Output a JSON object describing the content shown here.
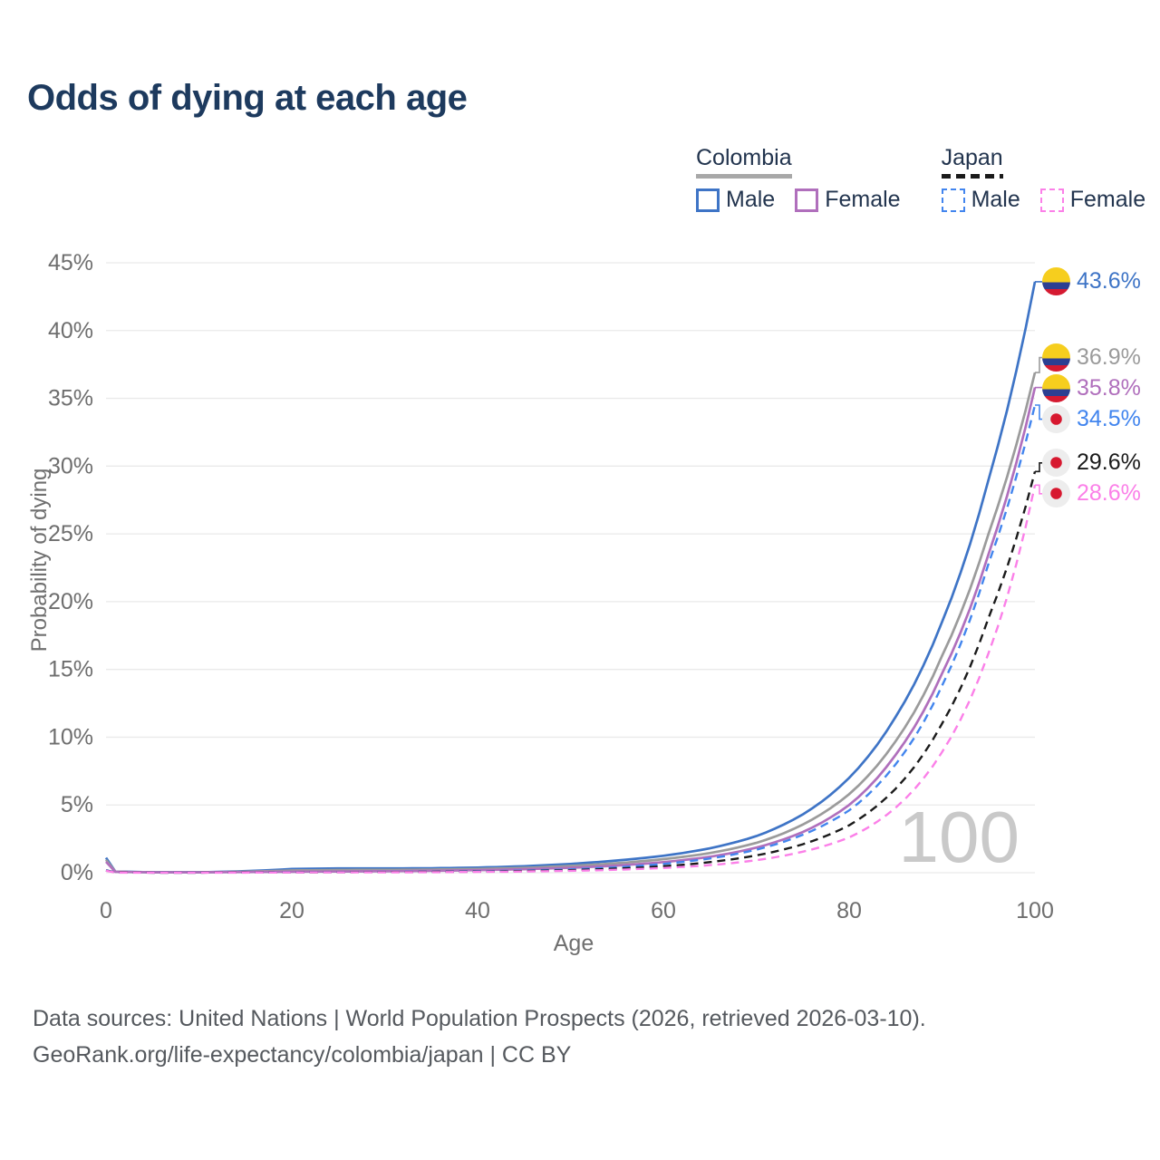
{
  "title": "Odds of dying at each age",
  "watermark": "100",
  "legend": {
    "colombia": {
      "label": "Colombia",
      "male": "Male",
      "female": "Female",
      "line_color": "#a8a8a8"
    },
    "japan": {
      "label": "Japan",
      "male": "Male",
      "female": "Female",
      "line_color": "#1a1a1a"
    }
  },
  "footer": {
    "line1": "Data sources: United Nations | World Population Prospects (2026, retrieved 2026-03-10).",
    "line2": "GeoRank.org/life-expectancy/colombia/japan | CC BY"
  },
  "chart_data": {
    "type": "line",
    "title": "Odds of dying at each age",
    "xlabel": "Age",
    "ylabel": "Probability of dying",
    "xlim": [
      0,
      100
    ],
    "ylim": [
      0,
      45
    ],
    "xticks": [
      0,
      20,
      40,
      60,
      80,
      100
    ],
    "yticks": [
      0,
      5,
      10,
      15,
      20,
      25,
      30,
      35,
      40,
      45
    ],
    "ytick_suffix": "%",
    "grid": true,
    "legend_position": "top-right",
    "watermark_age": "100",
    "x": [
      0,
      1,
      5,
      10,
      15,
      20,
      25,
      30,
      35,
      40,
      45,
      50,
      55,
      60,
      65,
      70,
      75,
      80,
      85,
      90,
      95,
      100
    ],
    "series": [
      {
        "id": "colombia-male",
        "name": "Colombia Male",
        "country": "Colombia",
        "sex": "Male",
        "color": "#3e74c6",
        "dashed": false,
        "end_label": "43.6%",
        "end_value": 43.6,
        "flag": "colombia",
        "values": [
          1.1,
          0.09,
          0.04,
          0.04,
          0.12,
          0.28,
          0.32,
          0.32,
          0.33,
          0.38,
          0.48,
          0.65,
          0.9,
          1.25,
          1.8,
          2.7,
          4.3,
          7.0,
          11.5,
          18.5,
          29.0,
          43.6
        ]
      },
      {
        "id": "colombia-all",
        "name": "Colombia (both sexes)",
        "country": "Colombia",
        "sex": "All",
        "color": "#9b9b9b",
        "dashed": false,
        "end_label": "36.9%",
        "end_value": 36.9,
        "flag": "colombia",
        "values": [
          0.95,
          0.08,
          0.03,
          0.03,
          0.08,
          0.17,
          0.2,
          0.21,
          0.23,
          0.28,
          0.36,
          0.5,
          0.7,
          1.0,
          1.45,
          2.2,
          3.55,
          5.8,
          9.7,
          16.0,
          25.0,
          36.9
        ]
      },
      {
        "id": "colombia-female",
        "name": "Colombia Female",
        "country": "Colombia",
        "sex": "Female",
        "color": "#b06fbc",
        "dashed": false,
        "end_label": "35.8%",
        "end_value": 35.8,
        "flag": "colombia",
        "values": [
          0.8,
          0.07,
          0.03,
          0.03,
          0.05,
          0.07,
          0.09,
          0.11,
          0.14,
          0.19,
          0.26,
          0.37,
          0.53,
          0.78,
          1.18,
          1.85,
          3.0,
          5.0,
          8.7,
          14.7,
          23.5,
          35.8
        ]
      },
      {
        "id": "japan-male",
        "name": "Japan Male",
        "country": "Japan",
        "sex": "Male",
        "color": "#4285ee",
        "dashed": true,
        "end_label": "34.5%",
        "end_value": 34.5,
        "flag": "japan",
        "values": [
          0.19,
          0.02,
          0.01,
          0.01,
          0.02,
          0.04,
          0.05,
          0.06,
          0.07,
          0.1,
          0.16,
          0.25,
          0.4,
          0.65,
          1.05,
          1.7,
          2.8,
          4.6,
          8.0,
          13.8,
          22.8,
          34.5
        ]
      },
      {
        "id": "japan-all",
        "name": "Japan (both sexes)",
        "country": "Japan",
        "sex": "All",
        "color": "#1a1a1a",
        "dashed": true,
        "end_label": "29.6%",
        "end_value": 29.6,
        "flag": "japan",
        "values": [
          0.17,
          0.02,
          0.01,
          0.01,
          0.02,
          0.03,
          0.04,
          0.05,
          0.06,
          0.08,
          0.12,
          0.19,
          0.3,
          0.48,
          0.78,
          1.28,
          2.1,
          3.5,
          6.2,
          11.0,
          18.8,
          29.6
        ]
      },
      {
        "id": "japan-female",
        "name": "Japan Female",
        "country": "Japan",
        "sex": "Female",
        "color": "#fb80e8",
        "dashed": true,
        "end_label": "28.6%",
        "end_value": 28.6,
        "flag": "japan",
        "values": [
          0.15,
          0.01,
          0.01,
          0.01,
          0.01,
          0.02,
          0.03,
          0.03,
          0.04,
          0.06,
          0.09,
          0.14,
          0.22,
          0.35,
          0.56,
          0.92,
          1.55,
          2.6,
          4.8,
          8.9,
          16.2,
          28.6
        ]
      }
    ],
    "flag_colors": {
      "colombia_yellow": "#F6CE1E",
      "colombia_blue": "#2C3F92",
      "colombia_red": "#D51A31",
      "japan_bg": "#EDEDED",
      "japan_red": "#D7182F"
    }
  }
}
